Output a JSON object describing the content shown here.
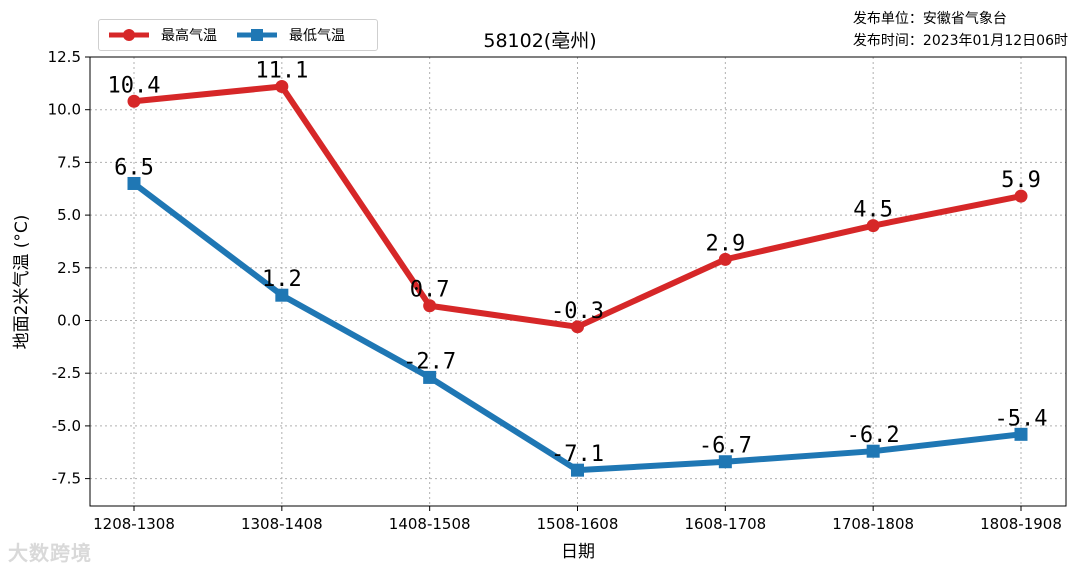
{
  "chart_data": {
    "type": "line",
    "title": "58102(亳州)",
    "xlabel": "日期",
    "ylabel": "地面2米气温 (°C)",
    "categories": [
      "1208-1308",
      "1308-1408",
      "1408-1508",
      "1508-1608",
      "1608-1708",
      "1708-1808",
      "1808-1908"
    ],
    "series": [
      {
        "name": "最高气温",
        "color": "#d62728",
        "marker": "circle",
        "values": [
          10.4,
          11.1,
          0.7,
          -0.3,
          2.9,
          4.5,
          5.9
        ]
      },
      {
        "name": "最低气温",
        "color": "#1f77b4",
        "marker": "square",
        "values": [
          6.5,
          1.2,
          -2.7,
          -7.1,
          -6.7,
          -6.2,
          -5.4
        ]
      }
    ],
    "ylim": [
      -8.8,
      12.5
    ],
    "yticks": [
      12.5,
      10.0,
      7.5,
      5.0,
      2.5,
      0.0,
      -2.5,
      -5.0,
      -7.5
    ],
    "grid": true,
    "legend_position": "upper-left"
  },
  "publisher": {
    "unit_label": "发布单位：安徽省气象台",
    "time_label": "发布时间：2023年01月12日06时"
  },
  "watermark": "大数跨境"
}
